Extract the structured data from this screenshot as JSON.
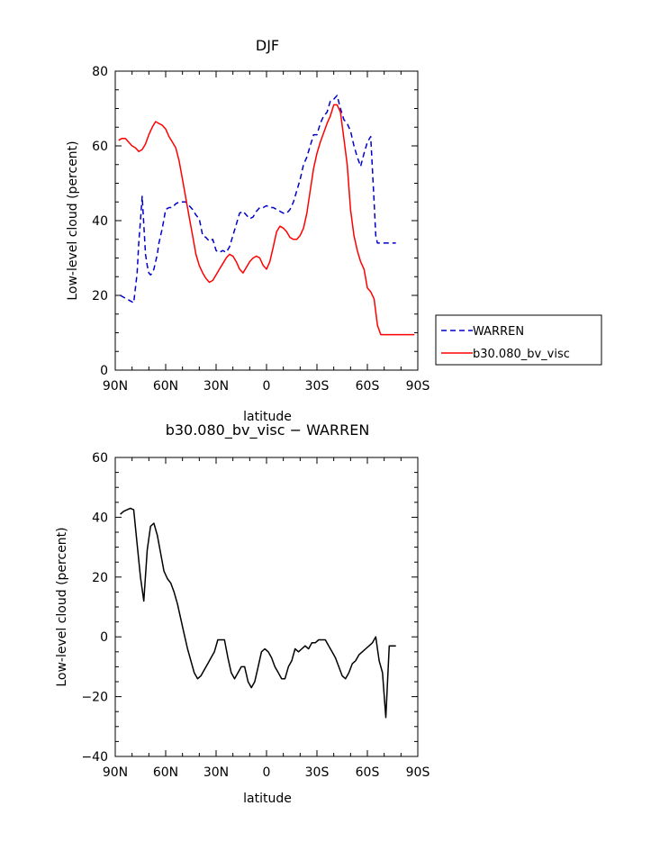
{
  "chart_data": [
    {
      "type": "line",
      "title": "DJF",
      "xlabel": "latitude",
      "ylabel": "Low-level cloud (percent)",
      "xlim": [
        90,
        -90
      ],
      "ylim": [
        0,
        80
      ],
      "xticks": [
        90,
        60,
        30,
        0,
        -30,
        -60,
        -90
      ],
      "xtick_labels": [
        "90N",
        "60N",
        "30N",
        "0",
        "30S",
        "60S",
        "90S"
      ],
      "yticks": [
        0,
        20,
        40,
        60,
        80
      ],
      "ytick_labels": [
        "0",
        "20",
        "40",
        "60",
        "80"
      ],
      "legend_position": "right",
      "series": [
        {
          "name": "WARREN",
          "color": "#0000cc",
          "style": "dashed",
          "x": [
            87,
            85,
            83,
            81,
            79,
            77,
            76,
            75,
            74,
            73,
            72,
            71,
            70,
            69,
            68,
            67,
            66,
            65,
            64,
            62,
            60,
            58,
            56,
            54,
            52,
            50,
            48,
            46,
            44,
            42,
            40,
            38,
            36,
            34,
            32,
            30,
            28,
            26,
            24,
            22,
            20,
            18,
            16,
            14,
            12,
            10,
            8,
            6,
            4,
            2,
            0,
            -2,
            -4,
            -6,
            -8,
            -10,
            -12,
            -14,
            -16,
            -18,
            -20,
            -22,
            -24,
            -26,
            -28,
            -30,
            -32,
            -34,
            -36,
            -38,
            -40,
            -42,
            -44,
            -46,
            -48,
            -50,
            -52,
            -54,
            -56,
            -58,
            -60,
            -62,
            -64,
            -65,
            -66,
            -67,
            -68,
            -69,
            -70,
            -71,
            -72,
            -73,
            -74,
            -75,
            -76,
            -77
          ],
          "values": [
            20,
            19.5,
            19,
            18.5,
            18,
            26,
            34,
            40,
            46.5,
            39,
            31,
            28,
            26,
            25.5,
            26,
            27,
            29,
            31,
            34,
            38,
            43,
            43.5,
            43.5,
            44.5,
            45,
            45,
            45,
            44,
            43,
            41.5,
            40.5,
            36,
            35.5,
            34.5,
            35,
            32,
            31.5,
            32,
            31.5,
            33,
            36,
            39,
            42,
            42.5,
            41.5,
            40.5,
            41,
            42.5,
            43.5,
            43.5,
            44,
            43.5,
            43.5,
            43,
            42.5,
            42,
            42,
            43,
            45,
            48,
            51,
            55,
            57,
            60,
            63,
            63,
            66,
            68,
            69,
            72,
            72.5,
            73.5,
            70,
            67,
            66,
            64,
            60,
            57,
            54.5,
            58,
            61,
            62.5,
            45,
            36,
            34,
            34,
            34,
            34,
            34,
            34,
            34,
            34,
            34,
            34,
            34,
            34
          ]
        },
        {
          "name": "b30.080_bv_visc",
          "color": "#ff0000",
          "style": "solid",
          "x": [
            88,
            86,
            84,
            82,
            80,
            78,
            76,
            74,
            72,
            70,
            68,
            66,
            64,
            62,
            60,
            58,
            56,
            54,
            52,
            50,
            48,
            46,
            44,
            42,
            40,
            38,
            36,
            34,
            32,
            30,
            28,
            26,
            24,
            22,
            20,
            18,
            16,
            14,
            12,
            10,
            8,
            6,
            4,
            2,
            0,
            -2,
            -4,
            -6,
            -8,
            -10,
            -12,
            -14,
            -16,
            -18,
            -20,
            -22,
            -24,
            -26,
            -28,
            -30,
            -32,
            -34,
            -36,
            -38,
            -40,
            -42,
            -44,
            -46,
            -48,
            -50,
            -52,
            -54,
            -56,
            -58,
            -60,
            -62,
            -64,
            -66,
            -68,
            -70,
            -72,
            -74,
            -76,
            -78,
            -80,
            -82,
            -84,
            -86,
            -88
          ],
          "values": [
            61.5,
            62,
            62,
            61,
            60,
            59.5,
            58.5,
            59,
            60.5,
            63,
            65,
            66.5,
            66,
            65.5,
            64.5,
            62.5,
            61,
            59.5,
            56,
            51,
            46,
            41,
            36,
            31,
            28,
            26,
            24.5,
            23.5,
            24,
            25.5,
            27,
            28.5,
            30,
            31,
            30.5,
            29,
            27,
            26,
            27.5,
            29,
            30,
            30.5,
            30,
            28,
            27,
            29,
            33,
            37,
            38.5,
            38,
            37,
            35.5,
            35,
            35,
            36,
            38,
            42,
            48,
            54,
            58,
            61,
            63.5,
            66,
            68,
            71,
            71,
            69,
            62,
            55,
            43,
            36,
            32,
            29,
            27,
            22,
            21,
            19,
            12,
            9.5,
            9.5,
            9.5,
            9.5,
            9.5,
            9.5,
            9.5,
            9.5,
            9.5,
            9.5,
            9.5
          ]
        }
      ]
    },
    {
      "type": "line",
      "title": "b30.080_bv_visc − WARREN",
      "xlabel": "latitude",
      "ylabel": "Low-level cloud (percent)",
      "xlim": [
        90,
        -90
      ],
      "ylim": [
        -40,
        60
      ],
      "xticks": [
        90,
        60,
        30,
        0,
        -30,
        -60,
        -90
      ],
      "xtick_labels": [
        "90N",
        "60N",
        "30N",
        "0",
        "30S",
        "60S",
        "90S"
      ],
      "yticks": [
        -40,
        -20,
        0,
        20,
        40,
        60
      ],
      "ytick_labels": [
        "−40",
        "−20",
        "0",
        "20",
        "40",
        "60"
      ],
      "series": [
        {
          "name": "b30.080_bv_visc − WARREN",
          "color": "#000000",
          "style": "solid",
          "x": [
            87,
            85,
            83,
            81,
            79,
            77,
            75,
            73,
            71,
            69,
            67,
            65,
            63,
            61,
            59,
            57,
            55,
            53,
            51,
            49,
            47,
            45,
            43,
            41,
            39,
            37,
            35,
            33,
            31,
            29,
            27,
            25,
            23,
            21,
            19,
            17,
            15,
            13,
            11,
            9,
            7,
            5,
            3,
            1,
            -1,
            -3,
            -5,
            -7,
            -9,
            -11,
            -13,
            -15,
            -17,
            -19,
            -21,
            -23,
            -25,
            -27,
            -29,
            -31,
            -33,
            -35,
            -37,
            -39,
            -41,
            -43,
            -45,
            -47,
            -49,
            -51,
            -53,
            -55,
            -57,
            -59,
            -61,
            -63,
            -65,
            -67,
            -69,
            -71,
            -73,
            -75,
            -77
          ],
          "values": [
            41,
            42,
            42.5,
            43,
            42.5,
            31,
            20,
            12,
            29,
            37,
            38,
            34,
            28,
            22,
            19.5,
            18,
            15,
            11,
            6,
            1,
            -4,
            -8,
            -12,
            -14,
            -13,
            -11,
            -9,
            -7,
            -5,
            -1,
            -1,
            -1,
            -7,
            -12,
            -14,
            -12,
            -10,
            -10,
            -15,
            -17,
            -15,
            -10,
            -5,
            -4,
            -5,
            -7,
            -10,
            -12,
            -14,
            -14,
            -10,
            -8,
            -4,
            -5,
            -4,
            -3,
            -4,
            -2,
            -2,
            -1,
            -1,
            -1,
            -3,
            -5,
            -7,
            -10,
            -13,
            -14,
            -12,
            -9,
            -8,
            -6,
            -5,
            -4,
            -3,
            -2,
            0,
            -8,
            -12,
            -27,
            -3,
            -3,
            -3
          ]
        }
      ]
    }
  ]
}
